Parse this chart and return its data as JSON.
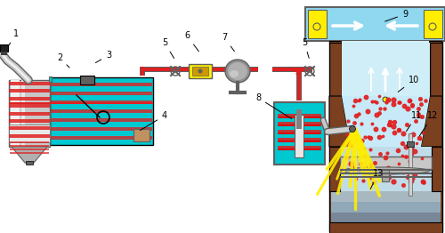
{
  "bg_color": "#ffffff",
  "cyan": "#00c8d0",
  "red": "#e02020",
  "dark_red": "#b00000",
  "brown": "#7a4020",
  "dark_brown": "#5a2800",
  "gray": "#a0a0a0",
  "gray_dark": "#606060",
  "gray_med": "#808080",
  "gray_light": "#d8d8d8",
  "yellow": "#ffee00",
  "orange": "#ff9900",
  "white": "#ffffff",
  "black": "#000000",
  "light_blue": "#b0e8f8",
  "pipe_gray": "#909090",
  "label_fontsize": 7
}
